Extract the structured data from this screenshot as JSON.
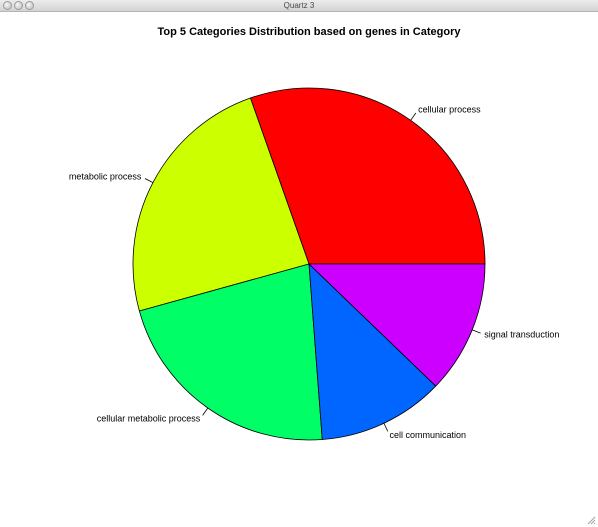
{
  "window": {
    "title": "Quartz 3"
  },
  "chart_data": {
    "type": "pie",
    "title": "Top 5 Categories Distribution based on genes in Category",
    "categories": [
      "cellular process",
      "metabolic process",
      "cellular metabolic process",
      "cell communication",
      "signal transduction"
    ],
    "values": [
      30.4,
      23.9,
      21.9,
      11.6,
      12.2
    ],
    "colors": [
      "#FF0000",
      "#CCFF00",
      "#00FF66",
      "#0066FF",
      "#CC00FF"
    ],
    "start_angle_deg": 0,
    "direction": "counterclockwise",
    "legend": "none"
  }
}
